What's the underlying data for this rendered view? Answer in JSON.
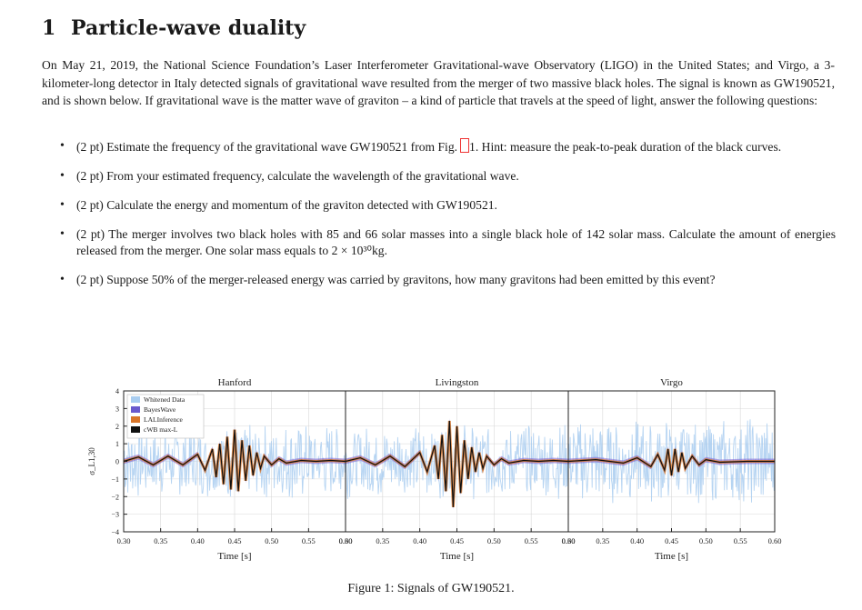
{
  "section": {
    "number": "1",
    "title": "Particle-wave duality"
  },
  "intro": "On May 21, 2019, the National Science Foundation’s Laser Interferometer Gravitational-wave Observatory (LIGO) in the United States; and Virgo, a 3-kilometer-long detector in Italy detected signals of gravitational wave resulted from the merger of two massive black holes. The signal is known as GW190521, and is shown below. If gravitational wave is the matter wave of graviton – a kind of particle that travels at the speed of light, answer the following questions:",
  "questions": [
    {
      "a": "(2 pt) Estimate the frequency of the gravitational wave GW190521 from Fig.",
      "b": "1. Hint: measure the peak-to-peak duration of the black curves."
    },
    {
      "text": "(2 pt) From your estimated frequency, calculate the wavelength of the gravitational wave."
    },
    {
      "text": "(2 pt) Calculate the energy and momentum of the graviton detected with GW190521."
    },
    {
      "text": "(2 pt) The merger involves two black holes with 85 and 66 solar masses into a single black hole of 142 solar mass. Calculate the amount of energies released from the merger. One solar mass equals to 2 × 10³⁰kg."
    },
    {
      "text": "(2 pt) Suppose 50% of the merger-released energy was carried by gravitons, how many gravitons had been emitted by this event?"
    }
  ],
  "figure_caption": "Figure 1: Signals of GW190521.",
  "chart_data": [
    {
      "type": "line",
      "title": "Hanford",
      "xlabel": "Time [s]",
      "ylabel": "σ_L1,30",
      "xlim": [
        0.3,
        0.6
      ],
      "ylim": [
        -4,
        4
      ],
      "xticks": [
        "0.30",
        "0.35",
        "0.40",
        "0.45",
        "0.50",
        "0.55",
        "0.60"
      ],
      "yticks": [
        "−4",
        "−3",
        "−2",
        "−1",
        "0",
        "1",
        "2",
        "3",
        "4"
      ],
      "grid": true,
      "legend_placement": "top-left",
      "legend": [
        "Whitened Data",
        "BayesWave",
        "LALInference",
        "cWB max-L"
      ],
      "colors": {
        "Whitened Data": "#a9cdf0",
        "BayesWave": "#6a5acd",
        "LALInference": "#d9762a",
        "cWB max-L": "#111111"
      },
      "series": [
        {
          "name": "cWB max-L",
          "x": [
            0.3,
            0.32,
            0.34,
            0.36,
            0.38,
            0.4,
            0.41,
            0.42,
            0.425,
            0.43,
            0.435,
            0.44,
            0.445,
            0.45,
            0.455,
            0.46,
            0.465,
            0.47,
            0.475,
            0.48,
            0.485,
            0.49,
            0.5,
            0.51,
            0.52,
            0.54,
            0.56,
            0.58,
            0.6
          ],
          "y": [
            0.0,
            0.25,
            -0.2,
            0.3,
            -0.2,
            0.4,
            -0.5,
            0.7,
            -0.9,
            1.0,
            -1.3,
            1.4,
            -1.6,
            1.8,
            -1.7,
            1.2,
            -1.1,
            0.9,
            -0.8,
            0.5,
            -0.4,
            0.3,
            -0.2,
            0.15,
            -0.1,
            0.05,
            0.0,
            0.05,
            0.0
          ]
        }
      ]
    },
    {
      "type": "line",
      "title": "Livingston",
      "xlabel": "Time [s]",
      "xlim": [
        0.3,
        0.6
      ],
      "ylim": [
        -4,
        4
      ],
      "xticks": [
        "0.30",
        "0.35",
        "0.40",
        "0.45",
        "0.50",
        "0.55",
        "0.60"
      ],
      "grid": true,
      "series": [
        {
          "name": "cWB max-L",
          "x": [
            0.3,
            0.32,
            0.34,
            0.36,
            0.38,
            0.4,
            0.41,
            0.42,
            0.425,
            0.43,
            0.435,
            0.44,
            0.445,
            0.45,
            0.455,
            0.46,
            0.465,
            0.47,
            0.475,
            0.48,
            0.485,
            0.49,
            0.5,
            0.51,
            0.52,
            0.54,
            0.56,
            0.58,
            0.6
          ],
          "y": [
            0.0,
            0.2,
            -0.2,
            0.3,
            -0.3,
            0.5,
            -0.6,
            0.9,
            -1.0,
            1.5,
            -1.7,
            2.3,
            -2.6,
            2.0,
            -1.8,
            1.2,
            -1.0,
            0.8,
            -0.6,
            0.5,
            -0.4,
            0.3,
            -0.2,
            0.15,
            -0.1,
            0.05,
            0.0,
            0.05,
            0.0
          ]
        }
      ]
    },
    {
      "type": "line",
      "title": "Virgo",
      "xlabel": "Time [s]",
      "xlim": [
        0.3,
        0.6
      ],
      "ylim": [
        -4,
        4
      ],
      "xticks": [
        "0.30",
        "0.35",
        "0.40",
        "0.45",
        "0.50",
        "0.55",
        "0.60"
      ],
      "grid": true,
      "series": [
        {
          "name": "cWB max-L",
          "x": [
            0.3,
            0.34,
            0.38,
            0.4,
            0.42,
            0.43,
            0.44,
            0.445,
            0.45,
            0.455,
            0.46,
            0.465,
            0.47,
            0.48,
            0.49,
            0.5,
            0.52,
            0.56,
            0.6
          ],
          "y": [
            0.0,
            0.1,
            -0.1,
            0.2,
            -0.3,
            0.4,
            -0.5,
            0.7,
            -0.8,
            0.7,
            -0.6,
            0.5,
            -0.4,
            0.3,
            -0.2,
            0.1,
            -0.05,
            0.0,
            0.0
          ]
        }
      ]
    }
  ]
}
